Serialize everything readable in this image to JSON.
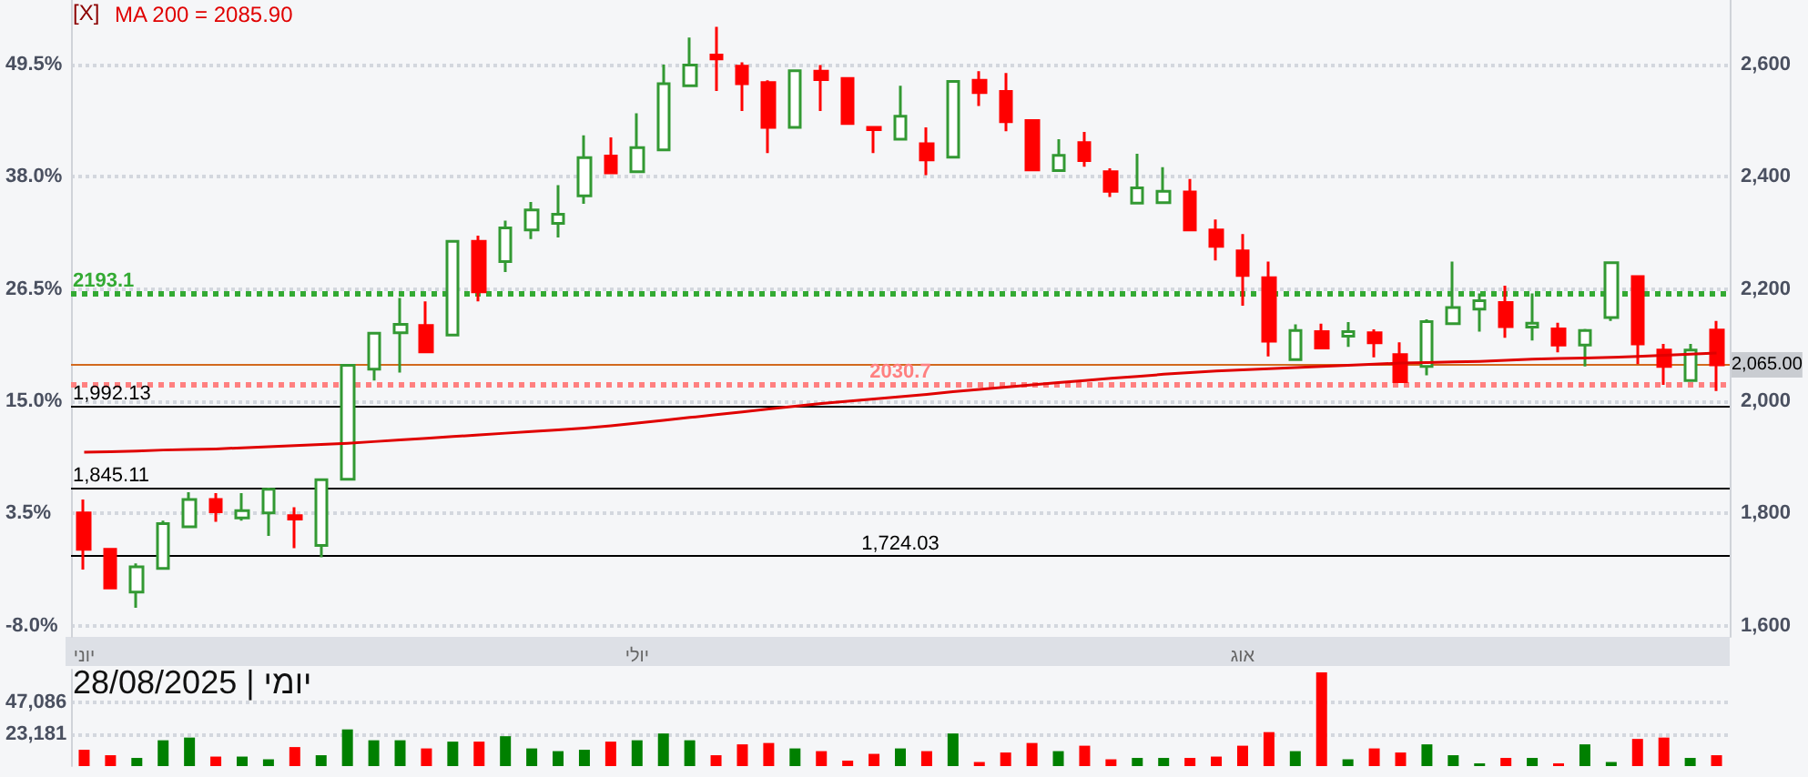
{
  "chart_data": [
    {
      "type": "candlestick",
      "categories": [
        "יוני",
        null,
        null,
        null,
        null,
        null,
        null,
        null,
        null,
        null,
        null,
        null,
        null,
        null,
        null,
        null,
        null,
        null,
        null,
        null,
        null,
        "יולי",
        null,
        null,
        null,
        null,
        null,
        null,
        null,
        null,
        null,
        null,
        null,
        null,
        null,
        null,
        null,
        null,
        null,
        null,
        null,
        null,
        null,
        null,
        "אוג",
        null,
        null,
        null,
        null,
        null,
        null,
        null,
        null,
        null,
        null,
        null,
        null,
        null,
        null,
        null,
        null,
        null,
        null
      ],
      "annotations": [
        "[X]"
      ],
      "ylim": [
        1580,
        2715
      ],
      "yticks": [
        {
          "value": 1600,
          "label": "1,600"
        },
        {
          "value": 1800,
          "label": "1,800"
        },
        {
          "value": 2000,
          "label": "2,000"
        },
        {
          "value": 2200,
          "label": "2,200"
        },
        {
          "value": 2400,
          "label": "2,400"
        },
        {
          "value": 2600,
          "label": "2,600"
        }
      ],
      "y2lim": [
        -9.15,
        56.11
      ],
      "y2ticks": [
        {
          "value": -8,
          "label": "-8.0%"
        },
        {
          "value": 3.5,
          "label": "3.5%"
        },
        {
          "value": 15,
          "label": "15.0%"
        },
        {
          "value": 26.5,
          "label": "26.5%"
        },
        {
          "value": 38,
          "label": "38.0%"
        },
        {
          "value": 49.5,
          "label": "49.5%"
        }
      ],
      "grid": "y",
      "legend": "top left",
      "marker": "none",
      "ohlc": [
        [
          1801,
          1825,
          1700,
          1736
        ],
        [
          1736,
          1738,
          1667,
          1667
        ],
        [
          1660,
          1711,
          1632,
          1705
        ],
        [
          1702,
          1787,
          1702,
          1782
        ],
        [
          1776,
          1838,
          1776,
          1825
        ],
        [
          1825,
          1836,
          1785,
          1803
        ],
        [
          1792,
          1836,
          1787,
          1805
        ],
        [
          1801,
          1846,
          1760,
          1843
        ],
        [
          1796,
          1811,
          1738,
          1790
        ],
        [
          1743,
          1860,
          1722,
          1860
        ],
        [
          1861,
          2064,
          1861,
          2064
        ],
        [
          2057,
          2121,
          2037,
          2121
        ],
        [
          2122,
          2184,
          2051,
          2137
        ],
        [
          2135,
          2178,
          2088,
          2088
        ],
        [
          2118,
          2285,
          2118,
          2285
        ],
        [
          2285,
          2295,
          2178,
          2195
        ],
        [
          2249,
          2322,
          2230,
          2309
        ],
        [
          2305,
          2355,
          2289,
          2341
        ],
        [
          2317,
          2385,
          2292,
          2333
        ],
        [
          2366,
          2474,
          2352,
          2434
        ],
        [
          2437,
          2470,
          2405,
          2407
        ],
        [
          2409,
          2513,
          2409,
          2452
        ],
        [
          2448,
          2600,
          2448,
          2566
        ],
        [
          2562,
          2648,
          2562,
          2599
        ],
        [
          2617,
          2667,
          2553,
          2610
        ],
        [
          2597,
          2604,
          2517,
          2566
        ],
        [
          2568,
          2572,
          2442,
          2488
        ],
        [
          2488,
          2589,
          2488,
          2589
        ],
        [
          2588,
          2599,
          2517,
          2573
        ],
        [
          2575,
          2575,
          2495,
          2495
        ],
        [
          2488,
          2488,
          2442,
          2484
        ],
        [
          2467,
          2562,
          2467,
          2508
        ],
        [
          2459,
          2488,
          2403,
          2430
        ],
        [
          2435,
          2570,
          2435,
          2570
        ],
        [
          2572,
          2588,
          2526,
          2550
        ],
        [
          2552,
          2585,
          2481,
          2498
        ],
        [
          2500,
          2500,
          2412,
          2412
        ],
        [
          2411,
          2467,
          2411,
          2438
        ],
        [
          2461,
          2480,
          2418,
          2429
        ],
        [
          2409,
          2415,
          2364,
          2374
        ],
        [
          2353,
          2441,
          2353,
          2380
        ],
        [
          2354,
          2417,
          2354,
          2374
        ],
        [
          2373,
          2396,
          2305,
          2305
        ],
        [
          2305,
          2324,
          2251,
          2276
        ],
        [
          2268,
          2298,
          2170,
          2224
        ],
        [
          2220,
          2249,
          2080,
          2107
        ],
        [
          2074,
          2137,
          2072,
          2126
        ],
        [
          2124,
          2138,
          2095,
          2095
        ],
        [
          2116,
          2141,
          2097,
          2124
        ],
        [
          2122,
          2128,
          2078,
          2104
        ],
        [
          2083,
          2105,
          2035,
          2035
        ],
        [
          2062,
          2146,
          2046,
          2142
        ],
        [
          2138,
          2249,
          2138,
          2167
        ],
        [
          2164,
          2192,
          2124,
          2179
        ],
        [
          2176,
          2206,
          2113,
          2133
        ],
        [
          2132,
          2192,
          2108,
          2139
        ],
        [
          2129,
          2140,
          2087,
          2100
        ],
        [
          2100,
          2129,
          2062,
          2126
        ],
        [
          2149,
          2247,
          2143,
          2247
        ],
        [
          2222,
          2222,
          2066,
          2102
        ],
        [
          2091,
          2102,
          2029,
          2062
        ],
        [
          2037,
          2102,
          2037,
          2091
        ],
        [
          2127,
          2143,
          2018,
          2065
        ]
      ],
      "colors": [
        "#ff0000",
        "#ff0000",
        "#339933",
        "#339933",
        "#339933",
        "#ff0000",
        "#339933",
        "#339933",
        "#ff0000",
        "#339933",
        "#339933",
        "#339933",
        "#339933",
        "#ff0000",
        "#339933",
        "#ff0000",
        "#339933",
        "#339933",
        "#339933",
        "#339933",
        "#ff0000",
        "#339933",
        "#339933",
        "#339933",
        "#ff0000",
        "#ff0000",
        "#ff0000",
        "#339933",
        "#ff0000",
        "#ff0000",
        "#ff0000",
        "#339933",
        "#ff0000",
        "#339933",
        "#ff0000",
        "#ff0000",
        "#ff0000",
        "#339933",
        "#ff0000",
        "#ff0000",
        "#339933",
        "#339933",
        "#ff0000",
        "#ff0000",
        "#ff0000",
        "#ff0000",
        "#339933",
        "#ff0000",
        "#339933",
        "#ff0000",
        "#ff0000",
        "#339933",
        "#339933",
        "#339933",
        "#ff0000",
        "#339933",
        "#ff0000",
        "#339933",
        "#339933",
        "#ff0000",
        "#ff0000",
        "#339933",
        "#ff0000"
      ],
      "series": [
        {
          "type": "line",
          "name": "MA 200 = 2085.90",
          "color": "#e00000",
          "values": [
            1909,
            1910,
            1911,
            1913,
            1914,
            1915,
            1917,
            1919,
            1921,
            1923,
            1925,
            1928,
            1931,
            1934,
            1937,
            1940,
            1943,
            1946,
            1949,
            1952,
            1956,
            1961,
            1966,
            1971,
            1976,
            1981,
            1986,
            1991,
            1996,
            2000,
            2004,
            2008,
            2012,
            2017,
            2021,
            2025,
            2029,
            2033,
            2037,
            2041,
            2044,
            2048,
            2051,
            2054,
            2056,
            2058,
            2060,
            2062,
            2064,
            2066,
            2068,
            2069,
            2070,
            2071,
            2073,
            2075,
            2076,
            2077,
            2078,
            2080,
            2082,
            2084,
            2085.9
          ]
        }
      ],
      "ref_lines": [
        {
          "axis": "y",
          "value": 2193.1,
          "label": "2193.1",
          "color": "#33aa33",
          "line_style": "dotted"
        },
        {
          "axis": "y",
          "value": 2065,
          "label": "2,065.00",
          "color": "#d2691e",
          "line_style": "solid"
        },
        {
          "axis": "y",
          "value": 2030.7,
          "label": "2030.7",
          "color": "#ff8080",
          "line_style": "dotted"
        },
        {
          "axis": "y",
          "value": 1992.13,
          "label": "1,992.13",
          "color": "#000000",
          "line_style": "solid"
        },
        {
          "axis": "y",
          "value": 1845.11,
          "label": "1,845.11",
          "color": "#000000",
          "line_style": "solid"
        },
        {
          "axis": "y",
          "value": 1724.03,
          "label": "1,724.03",
          "color": "#000000",
          "line_style": "solid"
        }
      ]
    },
    {
      "type": "bar",
      "categories": [
        null,
        null,
        null,
        null,
        null,
        null,
        null,
        null,
        null,
        null,
        null,
        null,
        null,
        null,
        null,
        null,
        null,
        null,
        null,
        null,
        null,
        null,
        null,
        null,
        null,
        null,
        null,
        null,
        null,
        null,
        null,
        null,
        null,
        null,
        null,
        null,
        null,
        null,
        null,
        null,
        null,
        null,
        null,
        null,
        null,
        null,
        null,
        null,
        null,
        null,
        null,
        null,
        null,
        null,
        null,
        null,
        null,
        null,
        null,
        null,
        null,
        null,
        null
      ],
      "annotations": [
        "יומי | 28/08/2025"
      ],
      "ylim": [
        0,
        71000
      ],
      "yticks": [
        {
          "value": 23181,
          "label": "23,181"
        },
        {
          "value": 47086,
          "label": "47,086"
        }
      ],
      "grid": "y",
      "values": [
        12000,
        8000,
        6000,
        19000,
        21000,
        7000,
        7000,
        5000,
        14000,
        8000,
        27000,
        19000,
        19000,
        13000,
        18000,
        18000,
        22000,
        13000,
        11000,
        12000,
        18000,
        19000,
        24000,
        19000,
        8000,
        16000,
        17000,
        13000,
        11000,
        4000,
        9000,
        13000,
        11000,
        24000,
        3000,
        10000,
        17000,
        11000,
        15000,
        5000,
        6000,
        6000,
        6000,
        7000,
        15000,
        25000,
        11000,
        69000,
        5000,
        13000,
        10000,
        16000,
        8000,
        2000,
        6000,
        6000,
        2000,
        16000,
        3000,
        20000,
        21000,
        6000,
        8000
      ],
      "colors": [
        "#ff0000",
        "#ff0000",
        "#008000",
        "#008000",
        "#008000",
        "#ff0000",
        "#008000",
        "#008000",
        "#ff0000",
        "#008000",
        "#008000",
        "#008000",
        "#008000",
        "#ff0000",
        "#008000",
        "#ff0000",
        "#008000",
        "#008000",
        "#008000",
        "#008000",
        "#ff0000",
        "#008000",
        "#008000",
        "#008000",
        "#ff0000",
        "#ff0000",
        "#ff0000",
        "#008000",
        "#ff0000",
        "#ff0000",
        "#ff0000",
        "#008000",
        "#ff0000",
        "#008000",
        "#ff0000",
        "#ff0000",
        "#ff0000",
        "#008000",
        "#ff0000",
        "#ff0000",
        "#008000",
        "#008000",
        "#ff0000",
        "#ff0000",
        "#ff0000",
        "#ff0000",
        "#008000",
        "#ff0000",
        "#008000",
        "#ff0000",
        "#ff0000",
        "#008000",
        "#008000",
        "#008000",
        "#ff0000",
        "#008000",
        "#ff0000",
        "#008000",
        "#008000",
        "#ff0000",
        "#ff0000",
        "#008000",
        "#ff0000"
      ]
    }
  ]
}
